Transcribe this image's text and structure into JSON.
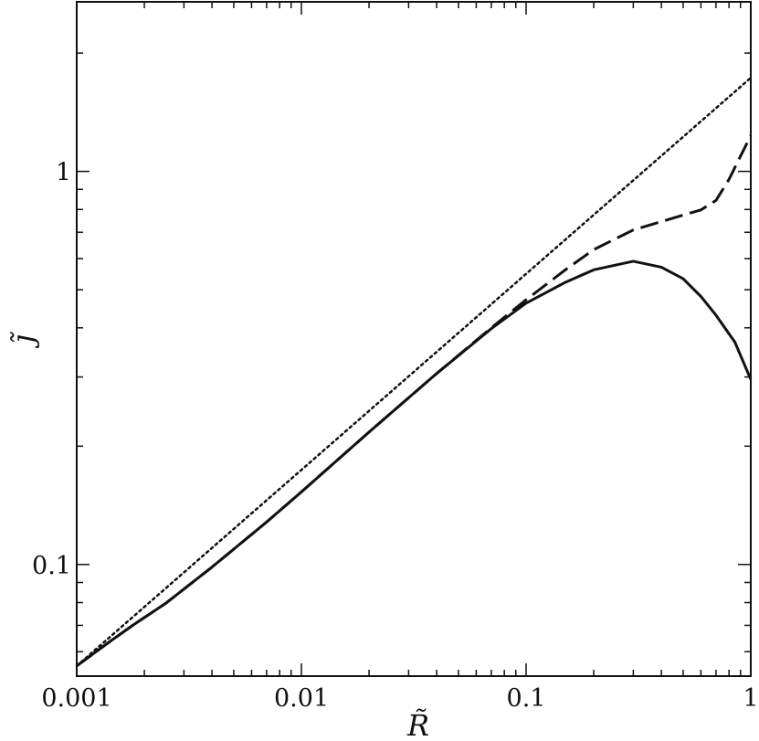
{
  "chart_data": {
    "type": "line",
    "title": "",
    "xlabel": "R̃",
    "ylabel": "j̃",
    "xscale": "log",
    "yscale": "log",
    "xlim": [
      0.001,
      1
    ],
    "ylim": [
      0.052,
      2.7
    ],
    "grid": false,
    "legend": "none",
    "x_ticks": [
      {
        "value": 0.001,
        "label": "0.001"
      },
      {
        "value": 0.01,
        "label": "0.01"
      },
      {
        "value": 0.1,
        "label": "0.1"
      },
      {
        "value": 1,
        "label": "1"
      }
    ],
    "y_ticks": [
      {
        "value": 0.1,
        "label": "0.1"
      },
      {
        "value": 1,
        "label": "1"
      }
    ],
    "series": [
      {
        "style": "dotted",
        "color": "#111111",
        "points": [
          [
            0.001,
            0.0552
          ],
          [
            1,
            1.73
          ]
        ]
      },
      {
        "style": "dashed",
        "color": "#111111",
        "points": [
          [
            0.001,
            0.0552
          ],
          [
            0.0014,
            0.0636
          ],
          [
            0.0018,
            0.0704
          ],
          [
            0.0025,
            0.0798
          ],
          [
            0.004,
            0.0985
          ],
          [
            0.007,
            0.1282
          ],
          [
            0.01,
            0.153
          ],
          [
            0.02,
            0.2172
          ],
          [
            0.04,
            0.3061
          ],
          [
            0.07,
            0.3999
          ],
          [
            0.1,
            0.4714
          ],
          [
            0.15,
            0.5626
          ],
          [
            0.2,
            0.6323
          ],
          [
            0.3,
            0.7097
          ],
          [
            0.5,
            0.7741
          ],
          [
            0.6,
            0.7978
          ],
          [
            0.7,
            0.8436
          ],
          [
            0.8,
            0.9542
          ],
          [
            0.9,
            1.093
          ],
          [
            1,
            1.233
          ]
        ]
      },
      {
        "style": "solid",
        "color": "#111111",
        "points": [
          [
            0.001,
            0.0552
          ],
          [
            0.0014,
            0.0636
          ],
          [
            0.0018,
            0.0704
          ],
          [
            0.0025,
            0.0798
          ],
          [
            0.004,
            0.0985
          ],
          [
            0.007,
            0.1282
          ],
          [
            0.01,
            0.153
          ],
          [
            0.02,
            0.2172
          ],
          [
            0.04,
            0.3061
          ],
          [
            0.07,
            0.3981
          ],
          [
            0.1,
            0.4621
          ],
          [
            0.15,
            0.5226
          ],
          [
            0.2,
            0.5618
          ],
          [
            0.3,
            0.5907
          ],
          [
            0.4,
            0.5705
          ],
          [
            0.5,
            0.5332
          ],
          [
            0.6,
            0.4806
          ],
          [
            0.7,
            0.4307
          ],
          [
            0.85,
            0.3677
          ],
          [
            1,
            0.2956
          ]
        ]
      }
    ]
  }
}
